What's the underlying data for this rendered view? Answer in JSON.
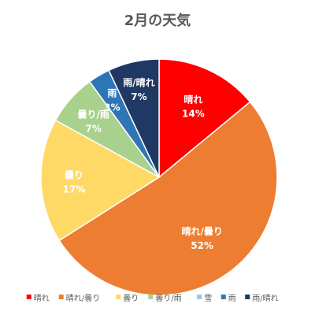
{
  "chart_data": {
    "type": "pie",
    "title": "2月の天気",
    "slices": [
      {
        "label": "晴れ",
        "value": 14,
        "value_label": "14%",
        "color": "#FF0000"
      },
      {
        "label": "晴れ/曇り",
        "value": 52,
        "value_label": "52%",
        "color": "#ED7D31"
      },
      {
        "label": "曇り",
        "value": 17,
        "value_label": "17%",
        "color": "#FFD966"
      },
      {
        "label": "曇り/雨",
        "value": 7,
        "value_label": "7%",
        "color": "#A9D18E"
      },
      {
        "label": "雪",
        "value": 0,
        "value_label": "",
        "color": "#9DC3E6"
      },
      {
        "label": "雨",
        "value": 3,
        "value_label": "3%",
        "color": "#2E75B6"
      },
      {
        "label": "雨/晴れ",
        "value": 7,
        "value_label": "7%",
        "color": "#1F3864"
      }
    ],
    "legend_position": "bottom",
    "start_angle_deg": 0,
    "direction": "clockwise"
  }
}
